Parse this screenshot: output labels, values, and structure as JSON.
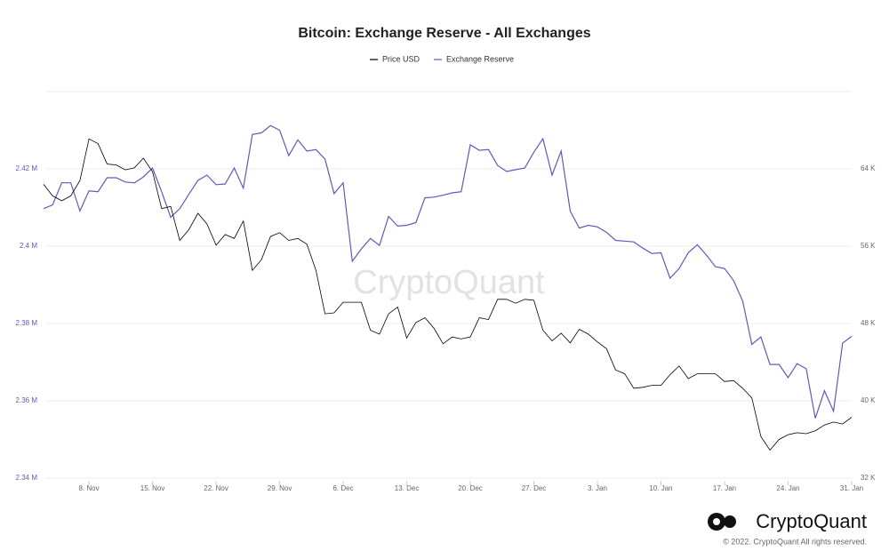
{
  "chart_data": {
    "type": "line",
    "title": "Bitcoin: Exchange Reserve - All Exchanges",
    "watermark": "CryptoQuant",
    "brand": "CryptoQuant",
    "copyright": "© 2022. CryptoQuant All rights reserved.",
    "categories": [
      null,
      null,
      null,
      null,
      null,
      "8. Nov",
      null,
      null,
      null,
      null,
      null,
      null,
      "15. Nov",
      null,
      null,
      null,
      null,
      null,
      null,
      "22. Nov",
      null,
      null,
      null,
      null,
      null,
      null,
      "29. Nov",
      null,
      null,
      null,
      null,
      null,
      null,
      "6. Dec",
      null,
      null,
      null,
      null,
      null,
      null,
      "13. Dec",
      null,
      null,
      null,
      null,
      null,
      null,
      "20. Dec",
      null,
      null,
      null,
      null,
      null,
      null,
      "27. Dec",
      null,
      null,
      null,
      null,
      null,
      null,
      "3. Jan",
      null,
      null,
      null,
      null,
      null,
      null,
      "10. Jan",
      null,
      null,
      null,
      null,
      null,
      null,
      "17. Jan",
      null,
      null,
      null,
      null,
      null,
      null,
      "24. Jan",
      null,
      null,
      null,
      null,
      null,
      null,
      "31. Jan"
    ],
    "series": [
      {
        "name": "Price USD",
        "color": "#000000",
        "axis": "y2",
        "values": [
          62.4,
          61.2,
          60.7,
          61.2,
          62.8,
          67.1,
          66.6,
          64.5,
          64.4,
          63.9,
          64.1,
          65.1,
          63.7,
          59.9,
          60.1,
          56.6,
          57.7,
          59.4,
          58.3,
          56.1,
          57.2,
          56.8,
          58.6,
          53.5,
          54.6,
          57.0,
          57.4,
          56.6,
          56.8,
          56.2,
          53.5,
          49.0,
          49.1,
          50.2,
          50.2,
          50.2,
          47.3,
          46.9,
          49.0,
          49.7,
          46.5,
          48.1,
          48.6,
          47.5,
          45.9,
          46.6,
          46.4,
          46.6,
          48.6,
          48.4,
          50.5,
          50.5,
          50.1,
          50.5,
          50.4,
          47.3,
          46.2,
          47.0,
          46.0,
          47.4,
          46.9,
          46.1,
          45.4,
          43.2,
          42.8,
          41.3,
          41.4,
          41.6,
          41.6,
          42.7,
          43.6,
          42.3,
          42.8,
          42.8,
          42.8,
          42.0,
          42.1,
          41.3,
          40.3,
          36.3,
          34.9,
          36.0,
          36.5,
          36.7,
          36.6,
          36.9,
          37.5,
          37.8,
          37.6,
          38.3
        ]
      },
      {
        "name": "Exchange Reserve",
        "color": "#5c5cb8",
        "values": [
          2.4097,
          2.4107,
          2.4164,
          2.4164,
          2.4091,
          2.4143,
          2.4141,
          2.4177,
          2.4177,
          2.4166,
          2.4164,
          2.4179,
          2.4202,
          2.4141,
          2.4075,
          2.4097,
          2.4134,
          2.417,
          2.4184,
          2.4159,
          2.4161,
          2.4202,
          2.415,
          2.4289,
          2.4293,
          2.4312,
          2.43,
          2.4234,
          2.4275,
          2.4246,
          2.425,
          2.4225,
          2.4136,
          2.4164,
          2.3961,
          2.3993,
          2.402,
          2.4002,
          2.4077,
          2.4052,
          2.4054,
          2.4061,
          2.4125,
          2.4127,
          2.4132,
          2.4138,
          2.4141,
          2.4262,
          2.4248,
          2.425,
          2.4209,
          2.4193,
          2.4198,
          2.4202,
          2.4243,
          2.4278,
          2.4184,
          2.4246,
          2.4091,
          2.4047,
          2.4054,
          2.405,
          2.4036,
          2.4015,
          2.4013,
          2.4011,
          2.3995,
          2.3981,
          2.3983,
          2.3917,
          2.3942,
          2.3983,
          2.4004,
          2.3977,
          2.3947,
          2.3942,
          2.3911,
          2.3858,
          2.3746,
          2.3765,
          2.3694,
          2.3694,
          2.366,
          2.3696,
          2.3683,
          2.3555,
          2.3626,
          2.3573,
          2.3749,
          2.3767
        ]
      }
    ],
    "ylim": [
      2.34,
      2.44
    ],
    "yticks": [
      {
        "value": 2.34,
        "label": "2.34 M"
      },
      {
        "value": 2.36,
        "label": "2.36 M"
      },
      {
        "value": 2.38,
        "label": "2.38 M"
      },
      {
        "value": 2.4,
        "label": "2.4 M"
      },
      {
        "value": 2.42,
        "label": "2.42 M"
      }
    ],
    "y2lim": [
      32,
      72
    ],
    "y2ticks": [
      {
        "value": 32,
        "label": "32 K"
      },
      {
        "value": 40,
        "label": "40 K"
      },
      {
        "value": 48,
        "label": "48 K"
      },
      {
        "value": 56,
        "label": "56 K"
      },
      {
        "value": 64,
        "label": "64 K"
      }
    ],
    "grid": true
  }
}
